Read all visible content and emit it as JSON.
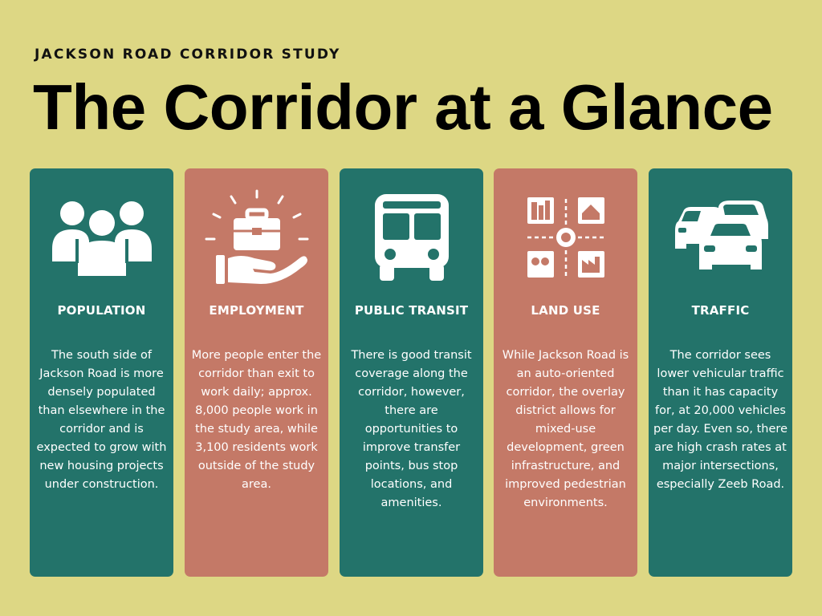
{
  "header": {
    "kicker": "JACKSON ROAD CORRIDOR STUDY",
    "title": "The Corridor at a Glance"
  },
  "colors": {
    "background": "#ddd784",
    "teal": "#23736a",
    "rose": "#c47967",
    "text_light": "#ffffff",
    "text_dark": "#000000"
  },
  "cards": [
    {
      "icon": "people-group-icon",
      "title": "POPULATION",
      "body": "The south side of Jackson Road is more densely populated than elsewhere in the corridor and is expected to grow with new housing projects under construction."
    },
    {
      "icon": "hand-briefcase-icon",
      "title": "EMPLOYMENT",
      "body": "More people enter the corridor than exit to work daily; approx. 8,000 people work in the study area, while 3,100 residents work outside of the study area."
    },
    {
      "icon": "bus-icon",
      "title": "PUBLIC TRANSIT",
      "body": "There is good transit coverage along the corridor, however, there are opportunities to improve transfer points, bus stop locations, and amenities."
    },
    {
      "icon": "land-use-map-icon",
      "title": "LAND USE",
      "body": "While Jackson Road is an auto-oriented corridor, the overlay district allows for mixed-use development, green infrastructure, and improved pedestrian environments."
    },
    {
      "icon": "cars-traffic-icon",
      "title": "TRAFFIC",
      "body": "The corridor sees lower vehicular traffic than it has capacity for, at 20,000 vehicles per day. Even so, there are high crash rates at major intersections, especially Zeeb Road."
    }
  ]
}
